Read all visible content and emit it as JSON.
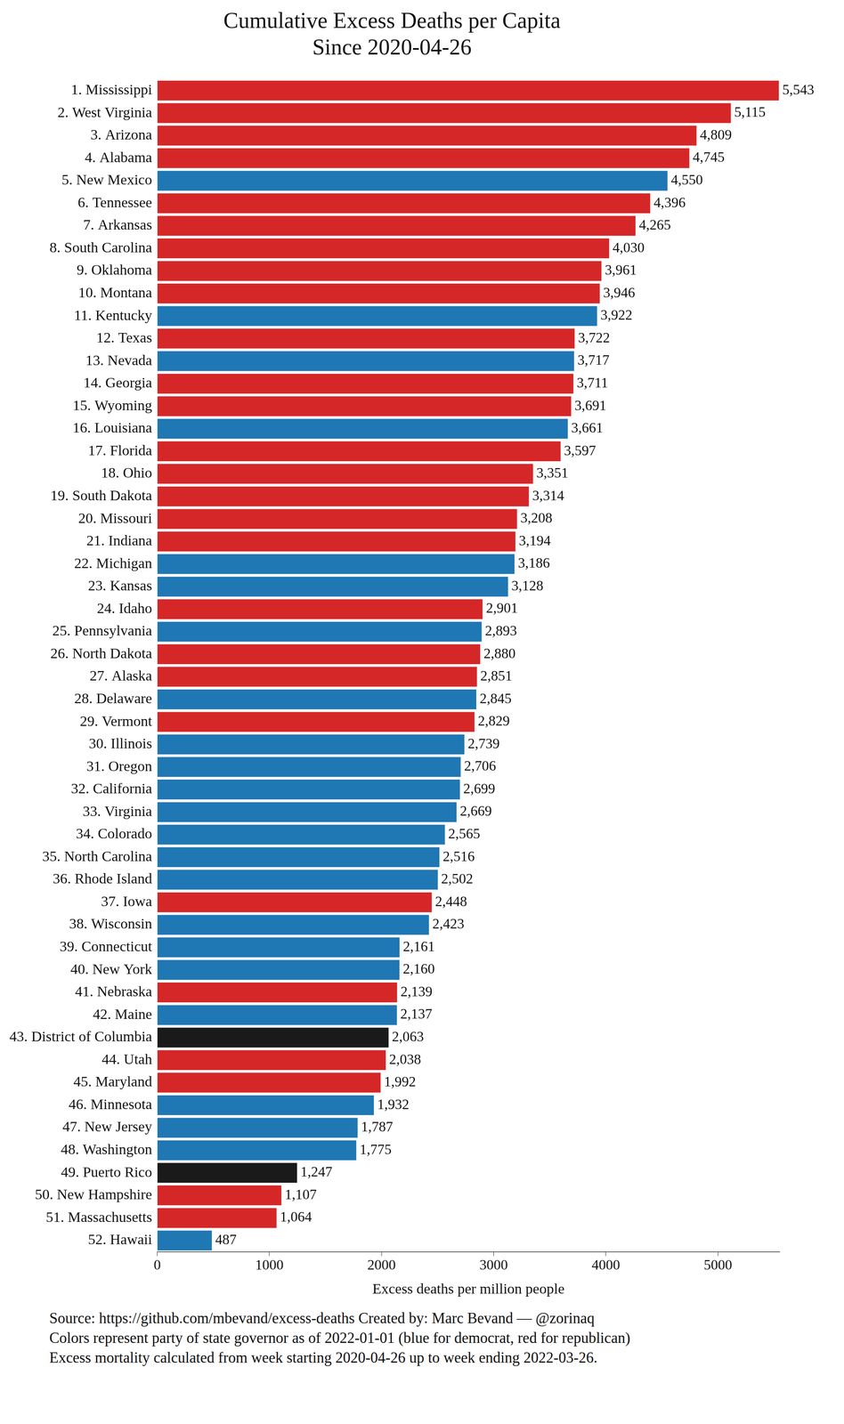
{
  "chart_data": {
    "type": "bar",
    "orientation": "horizontal",
    "title": "Cumulative Excess Deaths per Capita",
    "subtitle": "Since 2020-04-26",
    "x_label": "Excess deaths per million people",
    "annotations": [
      "Source: https://github.com/mbevand/excess-deaths  Created by: Marc Bevand — @zorinaq",
      "Colors represent party of state governor as of 2022-01-01 (blue for democrat, red for republican)",
      "Excess mortality calculated from week starting 2020-04-26 up to week ending 2022-03-26."
    ],
    "categories": [
      "1. Mississippi",
      "2. West Virginia",
      "3. Arizona",
      "4. Alabama",
      "5. New Mexico",
      "6. Tennessee",
      "7. Arkansas",
      "8. South Carolina",
      "9. Oklahoma",
      "10. Montana",
      "11. Kentucky",
      "12. Texas",
      "13. Nevada",
      "14. Georgia",
      "15. Wyoming",
      "16. Louisiana",
      "17. Florida",
      "18. Ohio",
      "19. South Dakota",
      "20. Missouri",
      "21. Indiana",
      "22. Michigan",
      "23. Kansas",
      "24. Idaho",
      "25. Pennsylvania",
      "26. North Dakota",
      "27. Alaska",
      "28. Delaware",
      "29. Vermont",
      "30. Illinois",
      "31. Oregon",
      "32. California",
      "33. Virginia",
      "34. Colorado",
      "35. North Carolina",
      "36. Rhode Island",
      "37. Iowa",
      "38. Wisconsin",
      "39. Connecticut",
      "40. New York",
      "41. Nebraska",
      "42. Maine",
      "43. District of Columbia",
      "44. Utah",
      "45. Maryland",
      "46. Minnesota",
      "47. New Jersey",
      "48. Washington",
      "49. Puerto Rico",
      "50. New Hampshire",
      "51. Massachusetts",
      "52. Hawaii"
    ],
    "values": [
      5543,
      5115,
      4809,
      4745,
      4550,
      4396,
      4265,
      4030,
      3961,
      3946,
      3922,
      3722,
      3717,
      3711,
      3691,
      3661,
      3597,
      3351,
      3314,
      3208,
      3194,
      3186,
      3128,
      2901,
      2893,
      2880,
      2851,
      2845,
      2829,
      2739,
      2706,
      2699,
      2669,
      2565,
      2516,
      2502,
      2448,
      2423,
      2161,
      2160,
      2139,
      2137,
      2063,
      2038,
      1992,
      1932,
      1787,
      1775,
      1247,
      1107,
      1064,
      487
    ],
    "value_labels": [
      "5,543",
      "5,115",
      "4,809",
      "4,745",
      "4,550",
      "4,396",
      "4,265",
      "4,030",
      "3,961",
      "3,946",
      "3,922",
      "3,722",
      "3,717",
      "3,711",
      "3,691",
      "3,661",
      "3,597",
      "3,351",
      "3,314",
      "3,208",
      "3,194",
      "3,186",
      "3,128",
      "2,901",
      "2,893",
      "2,880",
      "2,851",
      "2,845",
      "2,829",
      "2,739",
      "2,706",
      "2,699",
      "2,669",
      "2,565",
      "2,516",
      "2,502",
      "2,448",
      "2,423",
      "2,161",
      "2,160",
      "2,139",
      "2,137",
      "2,063",
      "2,038",
      "1,992",
      "1,932",
      "1,787",
      "1,775",
      "1,247",
      "1,107",
      "1,064",
      "487"
    ],
    "colors": [
      "#d62728",
      "#d62728",
      "#d62728",
      "#d62728",
      "#1f77b4",
      "#d62728",
      "#d62728",
      "#d62728",
      "#d62728",
      "#d62728",
      "#1f77b4",
      "#d62728",
      "#1f77b4",
      "#d62728",
      "#d62728",
      "#1f77b4",
      "#d62728",
      "#d62728",
      "#d62728",
      "#d62728",
      "#d62728",
      "#1f77b4",
      "#1f77b4",
      "#d62728",
      "#1f77b4",
      "#d62728",
      "#d62728",
      "#1f77b4",
      "#d62728",
      "#1f77b4",
      "#1f77b4",
      "#1f77b4",
      "#1f77b4",
      "#1f77b4",
      "#1f77b4",
      "#1f77b4",
      "#d62728",
      "#1f77b4",
      "#1f77b4",
      "#1f77b4",
      "#d62728",
      "#1f77b4",
      "#1a1a1a",
      "#d62728",
      "#d62728",
      "#1f77b4",
      "#1f77b4",
      "#1f77b4",
      "#1a1a1a",
      "#d62728",
      "#d62728",
      "#1f77b4"
    ],
    "xlim": [
      0,
      5550
    ],
    "xticks": [
      0,
      1000,
      2000,
      3000,
      4000,
      5000
    ],
    "grid": false,
    "data_labels": true
  }
}
